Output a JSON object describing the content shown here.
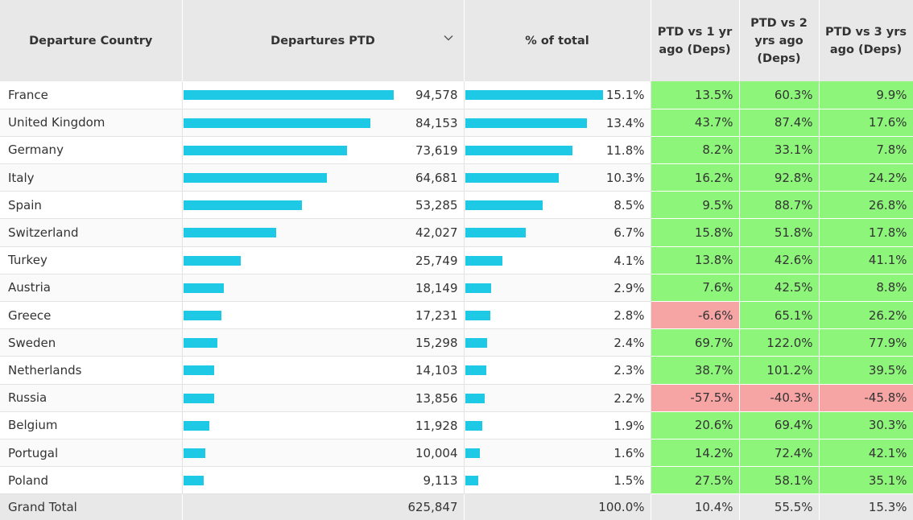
{
  "headers": {
    "country": "Departure Country",
    "departures": "Departures PTD",
    "pct_total": "% of total",
    "vs1": "PTD vs 1 yr ago (Deps)",
    "vs2": "PTD vs 2 yrs ago (Deps)",
    "vs3": "PTD vs 3 yrs ago (Deps)",
    "sort_icon": "chevron-down-icon"
  },
  "colors": {
    "bar": "#1ec9e6",
    "positive": "#8cf57a",
    "negative": "#f7a4a4",
    "header_bg": "#e8e8e8"
  },
  "rows": [
    {
      "country": "France",
      "departures": "94,578",
      "departures_value": 94578,
      "pct": "15.1%",
      "pct_value": 15.1,
      "vs1": "13.5%",
      "vs2": "60.3%",
      "vs3": "9.9%"
    },
    {
      "country": "United Kingdom",
      "departures": "84,153",
      "departures_value": 84153,
      "pct": "13.4%",
      "pct_value": 13.4,
      "vs1": "43.7%",
      "vs2": "87.4%",
      "vs3": "17.6%"
    },
    {
      "country": "Germany",
      "departures": "73,619",
      "departures_value": 73619,
      "pct": "11.8%",
      "pct_value": 11.8,
      "vs1": "8.2%",
      "vs2": "33.1%",
      "vs3": "7.8%"
    },
    {
      "country": "Italy",
      "departures": "64,681",
      "departures_value": 64681,
      "pct": "10.3%",
      "pct_value": 10.3,
      "vs1": "16.2%",
      "vs2": "92.8%",
      "vs3": "24.2%"
    },
    {
      "country": "Spain",
      "departures": "53,285",
      "departures_value": 53285,
      "pct": "8.5%",
      "pct_value": 8.5,
      "vs1": "9.5%",
      "vs2": "88.7%",
      "vs3": "26.8%"
    },
    {
      "country": "Switzerland",
      "departures": "42,027",
      "departures_value": 42027,
      "pct": "6.7%",
      "pct_value": 6.7,
      "vs1": "15.8%",
      "vs2": "51.8%",
      "vs3": "17.8%"
    },
    {
      "country": "Turkey",
      "departures": "25,749",
      "departures_value": 25749,
      "pct": "4.1%",
      "pct_value": 4.1,
      "vs1": "13.8%",
      "vs2": "42.6%",
      "vs3": "41.1%"
    },
    {
      "country": "Austria",
      "departures": "18,149",
      "departures_value": 18149,
      "pct": "2.9%",
      "pct_value": 2.9,
      "vs1": "7.6%",
      "vs2": "42.5%",
      "vs3": "8.8%"
    },
    {
      "country": "Greece",
      "departures": "17,231",
      "departures_value": 17231,
      "pct": "2.8%",
      "pct_value": 2.8,
      "vs1": "-6.6%",
      "vs2": "65.1%",
      "vs3": "26.2%"
    },
    {
      "country": "Sweden",
      "departures": "15,298",
      "departures_value": 15298,
      "pct": "2.4%",
      "pct_value": 2.4,
      "vs1": "69.7%",
      "vs2": "122.0%",
      "vs3": "77.9%"
    },
    {
      "country": "Netherlands",
      "departures": "14,103",
      "departures_value": 14103,
      "pct": "2.3%",
      "pct_value": 2.3,
      "vs1": "38.7%",
      "vs2": "101.2%",
      "vs3": "39.5%"
    },
    {
      "country": "Russia",
      "departures": "13,856",
      "departures_value": 13856,
      "pct": "2.2%",
      "pct_value": 2.2,
      "vs1": "-57.5%",
      "vs2": "-40.3%",
      "vs3": "-45.8%"
    },
    {
      "country": "Belgium",
      "departures": "11,928",
      "departures_value": 11928,
      "pct": "1.9%",
      "pct_value": 1.9,
      "vs1": "20.6%",
      "vs2": "69.4%",
      "vs3": "30.3%"
    },
    {
      "country": "Portugal",
      "departures": "10,004",
      "departures_value": 10004,
      "pct": "1.6%",
      "pct_value": 1.6,
      "vs1": "14.2%",
      "vs2": "72.4%",
      "vs3": "42.1%"
    },
    {
      "country": "Poland",
      "departures": "9,113",
      "departures_value": 9113,
      "pct": "1.5%",
      "pct_value": 1.5,
      "vs1": "27.5%",
      "vs2": "58.1%",
      "vs3": "35.1%"
    }
  ],
  "total": {
    "label": "Grand Total",
    "departures": "625,847",
    "pct": "100.0%",
    "vs1": "10.4%",
    "vs2": "55.5%",
    "vs3": "15.3%"
  }
}
